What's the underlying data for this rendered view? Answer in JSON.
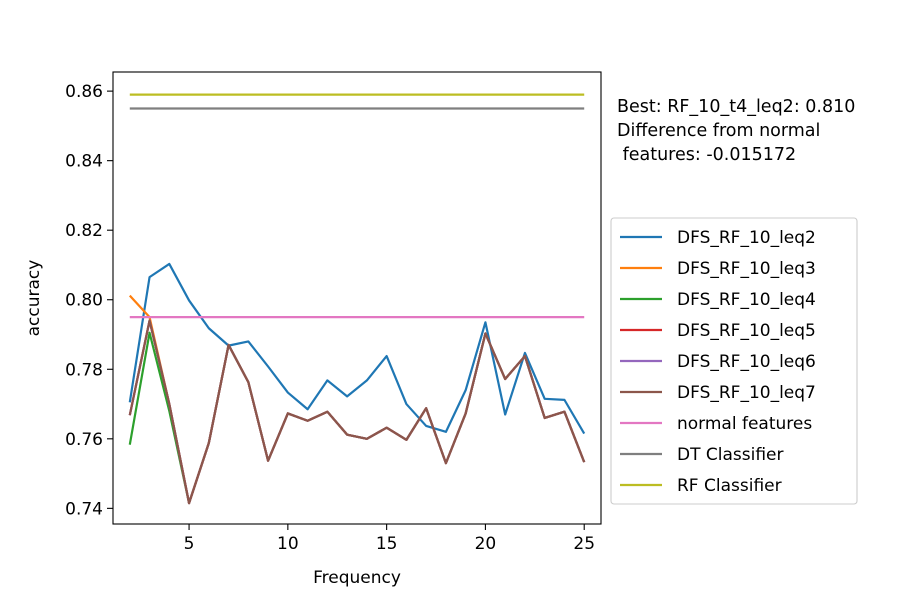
{
  "chart_data": {
    "type": "line",
    "xlabel": "Frequency",
    "ylabel": "accuracy",
    "xlim": [
      1.15,
      25.85
    ],
    "ylim": [
      0.7355,
      0.8655
    ],
    "x_ticks": [
      5,
      10,
      15,
      20,
      25
    ],
    "y_ticks": [
      0.74,
      0.76,
      0.78,
      0.8,
      0.82,
      0.84,
      0.86
    ],
    "x_tick_labels": [
      "5",
      "10",
      "15",
      "20",
      "25"
    ],
    "y_tick_labels": [
      "0.74",
      "0.76",
      "0.78",
      "0.80",
      "0.82",
      "0.84",
      "0.86"
    ],
    "grid": false,
    "legend_position": "right, outside plot",
    "annotation": {
      "line1": "Best: RF_10_t4_leq2: 0.810",
      "line2": "Difference from normal",
      "line3": " features: -0.015172"
    },
    "x": [
      2,
      3,
      4,
      5,
      6,
      7,
      8,
      9,
      10,
      11,
      12,
      13,
      14,
      15,
      16,
      17,
      18,
      19,
      20,
      21,
      22,
      23,
      24,
      25
    ],
    "series": [
      {
        "name": "DFS_RF_10_leq2",
        "color": "#1f77b4",
        "values": [
          0.7705,
          0.8065,
          0.8103,
          0.7998,
          0.7918,
          0.7868,
          0.788,
          0.7808,
          0.7733,
          0.7685,
          0.7768,
          0.7722,
          0.7768,
          0.7838,
          0.77,
          0.7637,
          0.762,
          0.774,
          0.7935,
          0.767,
          0.7847,
          0.7715,
          0.7712,
          0.7615
        ]
      },
      {
        "name": "DFS_RF_10_leq3",
        "color": "#ff7f0e",
        "values": [
          0.8012,
          0.795,
          0.77,
          0.7415,
          0.7588,
          0.787,
          0.7763,
          0.7537,
          0.7673,
          0.7652,
          0.7678,
          0.7612,
          0.76,
          0.7632,
          0.7597,
          0.7688,
          0.753,
          0.7673,
          0.7903,
          0.7772,
          0.7838,
          0.766,
          0.7678,
          0.7533
        ]
      },
      {
        "name": "DFS_RF_10_leq4",
        "color": "#2ca02c",
        "values": [
          0.7583,
          0.7905,
          0.768,
          0.7415,
          0.7588,
          0.787,
          0.7763,
          0.7537,
          0.7673,
          0.7652,
          0.7678,
          0.7612,
          0.76,
          0.7632,
          0.7597,
          0.7688,
          0.753,
          0.7673,
          0.7903,
          0.7772,
          0.7838,
          0.766,
          0.7678,
          0.7533
        ]
      },
      {
        "name": "DFS_RF_10_leq5",
        "color": "#d62728",
        "values": [
          0.7668,
          0.794,
          0.77,
          0.7415,
          0.7588,
          0.787,
          0.7763,
          0.7537,
          0.7673,
          0.7652,
          0.7678,
          0.7612,
          0.76,
          0.7632,
          0.7597,
          0.7688,
          0.753,
          0.7673,
          0.7903,
          0.7772,
          0.7838,
          0.766,
          0.7678,
          0.7533
        ]
      },
      {
        "name": "DFS_RF_10_leq6",
        "color": "#9467bd",
        "values": [
          0.7668,
          0.794,
          0.77,
          0.7415,
          0.7588,
          0.787,
          0.7763,
          0.7537,
          0.7673,
          0.7652,
          0.7678,
          0.7612,
          0.76,
          0.7632,
          0.7597,
          0.7688,
          0.753,
          0.7673,
          0.7903,
          0.7772,
          0.7838,
          0.766,
          0.7678,
          0.7533
        ]
      },
      {
        "name": "DFS_RF_10_leq7",
        "color": "#8c564b",
        "values": [
          0.7668,
          0.794,
          0.77,
          0.7415,
          0.7588,
          0.787,
          0.7763,
          0.7537,
          0.7673,
          0.7652,
          0.7678,
          0.7612,
          0.76,
          0.7632,
          0.7597,
          0.7688,
          0.753,
          0.7673,
          0.7903,
          0.7772,
          0.7838,
          0.766,
          0.7678,
          0.7533
        ]
      },
      {
        "name": "normal features",
        "color": "#e377c2",
        "values": [
          0.795,
          0.795,
          0.795,
          0.795,
          0.795,
          0.795,
          0.795,
          0.795,
          0.795,
          0.795,
          0.795,
          0.795,
          0.795,
          0.795,
          0.795,
          0.795,
          0.795,
          0.795,
          0.795,
          0.795,
          0.795,
          0.795,
          0.795,
          0.795
        ]
      },
      {
        "name": "DT Classifier",
        "color": "#7f7f7f",
        "values": [
          0.855,
          0.855,
          0.855,
          0.855,
          0.855,
          0.855,
          0.855,
          0.855,
          0.855,
          0.855,
          0.855,
          0.855,
          0.855,
          0.855,
          0.855,
          0.855,
          0.855,
          0.855,
          0.855,
          0.855,
          0.855,
          0.855,
          0.855,
          0.855
        ]
      },
      {
        "name": "RF Classifier",
        "color": "#bcbd22",
        "values": [
          0.859,
          0.859,
          0.859,
          0.859,
          0.859,
          0.859,
          0.859,
          0.859,
          0.859,
          0.859,
          0.859,
          0.859,
          0.859,
          0.859,
          0.859,
          0.859,
          0.859,
          0.859,
          0.859,
          0.859,
          0.859,
          0.859,
          0.859,
          0.859
        ]
      }
    ]
  }
}
